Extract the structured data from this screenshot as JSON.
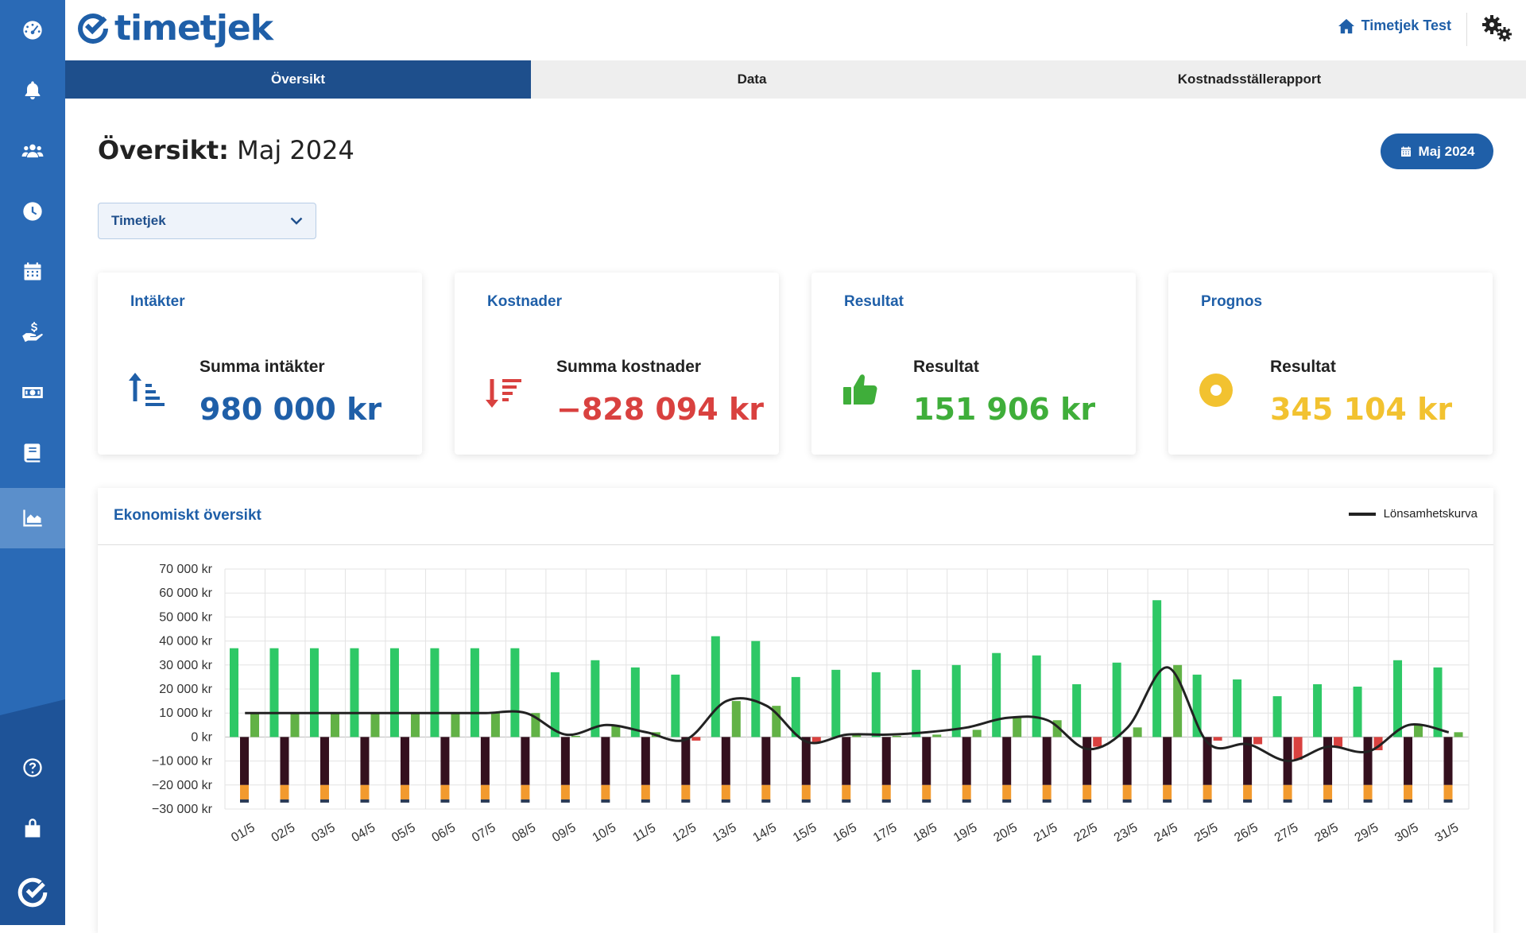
{
  "app": {
    "name": "timetjek"
  },
  "header": {
    "user_label": "Timetjek Test"
  },
  "tabs": [
    {
      "label": "Översikt",
      "active": true
    },
    {
      "label": "Data",
      "active": false
    },
    {
      "label": "Kostnadsställerapport",
      "active": false
    }
  ],
  "page": {
    "title_prefix": "Översikt:",
    "title_period": "Maj 2024",
    "period_button": "Maj 2024"
  },
  "filter": {
    "selected": "Timetjek"
  },
  "sidebar": {
    "items": [
      {
        "icon": "dashboard-icon"
      },
      {
        "icon": "bell-icon"
      },
      {
        "icon": "users-icon"
      },
      {
        "icon": "clock-icon"
      },
      {
        "icon": "calendar-icon"
      },
      {
        "icon": "salary-hand-icon"
      },
      {
        "icon": "money-icon"
      },
      {
        "icon": "book-icon"
      },
      {
        "icon": "area-chart-icon",
        "active": true
      }
    ],
    "bottom_items": [
      {
        "icon": "help-icon"
      },
      {
        "icon": "lock-icon"
      },
      {
        "icon": "timetjek-logo-icon"
      }
    ]
  },
  "cards": [
    {
      "title": "Intäkter",
      "label": "Summa intäkter",
      "value": "980 000 kr",
      "color": "#1f5fa8",
      "icon": "sort-amount-up-icon"
    },
    {
      "title": "Kostnader",
      "label": "Summa kostnader",
      "value": "−828 094 kr",
      "color": "#d9413f",
      "icon": "sort-amount-down-icon"
    },
    {
      "title": "Resultat",
      "label": "Resultat",
      "value": "151 906 kr",
      "color": "#3fae3a",
      "icon": "thumbs-up-icon"
    },
    {
      "title": "Prognos",
      "label": "Resultat",
      "value": "345 104 kr",
      "color": "#f2c230",
      "icon": "circle-dot-icon"
    }
  ],
  "chart": {
    "title": "Ekonomiskt översikt",
    "legend_label": "Lönsamhetskurva"
  },
  "chart_data": {
    "type": "bar",
    "title": "Ekonomiskt översikt",
    "xlabel": "",
    "ylabel": "",
    "ylim": [
      -30000,
      70000
    ],
    "y_ticks": [
      "70 000 kr",
      "60 000 kr",
      "50 000 kr",
      "40 000 kr",
      "30 000 kr",
      "20 000 kr",
      "10 000 kr",
      "0 kr",
      "−10 000 kr",
      "−20 000 kr",
      "−30 000 kr"
    ],
    "categories": [
      "01/5",
      "02/5",
      "03/5",
      "04/5",
      "05/5",
      "06/5",
      "07/5",
      "08/5",
      "09/5",
      "10/5",
      "11/5",
      "12/5",
      "13/5",
      "14/5",
      "15/5",
      "16/5",
      "17/5",
      "18/5",
      "19/5",
      "20/5",
      "21/5",
      "22/5",
      "23/5",
      "24/5",
      "25/5",
      "26/5",
      "27/5",
      "28/5",
      "29/5",
      "30/5",
      "31/5"
    ],
    "grid": true,
    "legend_position": "top-right",
    "series": [
      {
        "color": "#2ec866",
        "values": [
          37000,
          37000,
          37000,
          37000,
          37000,
          37000,
          37000,
          37000,
          27000,
          32000,
          29000,
          26000,
          42000,
          40000,
          25000,
          28000,
          27000,
          28000,
          30000,
          35000,
          34000,
          22000,
          31000,
          57000,
          26000,
          24000,
          17000,
          22000,
          21000,
          32000,
          29000
        ]
      },
      {
        "color": "#62b246",
        "values": [
          10000,
          10000,
          10000,
          10000,
          10000,
          10000,
          10000,
          10000,
          500,
          4500,
          2000,
          -1500,
          15000,
          13000,
          -2000,
          1000,
          500,
          1000,
          3000,
          8000,
          7000,
          -4000,
          4000,
          30000,
          -1500,
          -3000,
          -9500,
          -4000,
          -5500,
          5000,
          2000
        ]
      },
      {
        "color": "#34101e",
        "values": [
          -20000,
          -20000,
          -20000,
          -20000,
          -20000,
          -20000,
          -20000,
          -20000,
          -20000,
          -20000,
          -20000,
          -20000,
          -20000,
          -20000,
          -20000,
          -20000,
          -20000,
          -20000,
          -20000,
          -20000,
          -20000,
          -20000,
          -20000,
          -20000,
          -20000,
          -20000,
          -20000,
          -20000,
          -20000,
          -20000,
          -20000
        ]
      },
      {
        "color": "#f29a2e",
        "values": [
          -6000,
          -6000,
          -6000,
          -6000,
          -6000,
          -6000,
          -6000,
          -6000,
          -6000,
          -6000,
          -6000,
          -6000,
          -6000,
          -6000,
          -6000,
          -6000,
          -6000,
          -6000,
          -6000,
          -6000,
          -6000,
          -6000,
          -6000,
          -6000,
          -6000,
          -6000,
          -6000,
          -6000,
          -6000,
          -6000,
          -6000
        ]
      },
      {
        "name": "Lönsamhetskurva",
        "type": "line",
        "color": "#222222",
        "values": [
          10000,
          10000,
          10000,
          10000,
          10000,
          10000,
          10000,
          10000,
          1000,
          5000,
          2000,
          -1000,
          15000,
          13000,
          -2000,
          1000,
          1000,
          2000,
          4000,
          8000,
          7000,
          -5000,
          4000,
          29000,
          -2500,
          -3000,
          -10000,
          -4000,
          -6000,
          5000,
          2000
        ]
      }
    ]
  }
}
